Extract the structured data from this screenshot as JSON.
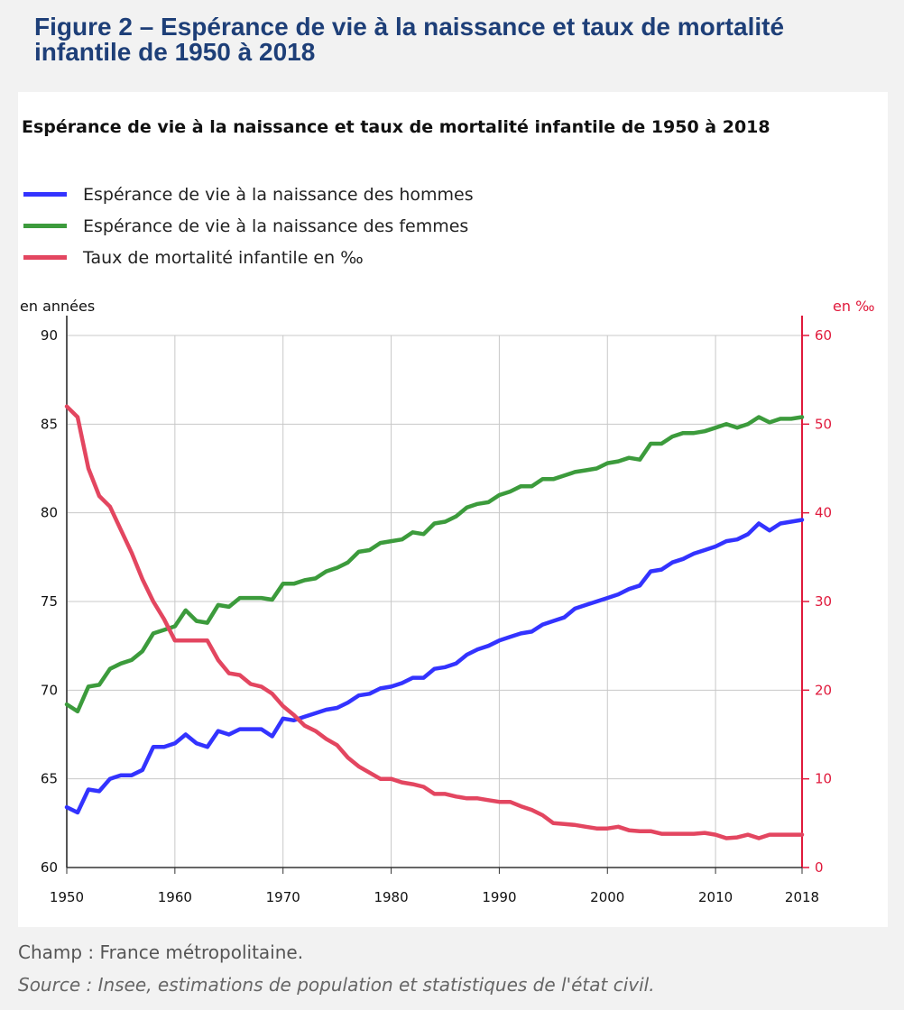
{
  "figure_title": "Figure 2 – Espérance de vie à la naissance et taux de mortalité infantile de 1950 à 2018",
  "footnotes": {
    "champ": "Champ : France métropolitaine.",
    "source": "Source : Insee, estimations de population et statistiques de l'état civil."
  },
  "colors": {
    "men": "#3333ff",
    "women": "#3c9b3c",
    "mortality": "#e34660",
    "right_axis": "#e0193b",
    "title": "#1e3f78"
  },
  "chart_data": {
    "type": "line",
    "title": "Espérance de vie à la naissance et taux de mortalité infantile de 1950 à 2018",
    "y_left_label": "en années",
    "y_right_label": "en ‰",
    "xlim": [
      1950,
      2018
    ],
    "ylim_left": [
      60,
      90
    ],
    "ylim_right": [
      0,
      60
    ],
    "x_ticks": [
      "1950",
      "1960",
      "1970",
      "1980",
      "1990",
      "2000",
      "2010",
      "2018"
    ],
    "y_left_ticks": [
      "60",
      "65",
      "70",
      "75",
      "80",
      "85",
      "90"
    ],
    "y_right_ticks": [
      "0",
      "10",
      "20",
      "30",
      "40",
      "50",
      "60"
    ],
    "grid": true,
    "legend_position": "top-left",
    "x": [
      1950,
      1951,
      1952,
      1953,
      1954,
      1955,
      1956,
      1957,
      1958,
      1959,
      1960,
      1961,
      1962,
      1963,
      1964,
      1965,
      1966,
      1967,
      1968,
      1969,
      1970,
      1971,
      1972,
      1973,
      1974,
      1975,
      1976,
      1977,
      1978,
      1979,
      1980,
      1981,
      1982,
      1983,
      1984,
      1985,
      1986,
      1987,
      1988,
      1989,
      1990,
      1991,
      1992,
      1993,
      1994,
      1995,
      1996,
      1997,
      1998,
      1999,
      2000,
      2001,
      2002,
      2003,
      2004,
      2005,
      2006,
      2007,
      2008,
      2009,
      2010,
      2011,
      2012,
      2013,
      2014,
      2015,
      2016,
      2017,
      2018
    ],
    "series": [
      {
        "name": "Espérance de vie à la naissance des hommes",
        "axis": "left",
        "color": "#3333ff",
        "values": [
          63.4,
          63.1,
          64.4,
          64.3,
          65.0,
          65.2,
          65.2,
          65.5,
          66.8,
          66.8,
          67.0,
          67.5,
          67.0,
          66.8,
          67.7,
          67.5,
          67.8,
          67.8,
          67.8,
          67.4,
          68.4,
          68.3,
          68.5,
          68.7,
          68.9,
          69.0,
          69.3,
          69.7,
          69.8,
          70.1,
          70.2,
          70.4,
          70.7,
          70.7,
          71.2,
          71.3,
          71.5,
          72.0,
          72.3,
          72.5,
          72.8,
          73.0,
          73.2,
          73.3,
          73.7,
          73.9,
          74.1,
          74.6,
          74.8,
          75.0,
          75.2,
          75.4,
          75.7,
          75.9,
          76.7,
          76.8,
          77.2,
          77.4,
          77.7,
          77.9,
          78.1,
          78.4,
          78.5,
          78.8,
          79.4,
          79.0,
          79.4,
          79.5,
          79.6
        ]
      },
      {
        "name": "Espérance de vie à la naissance des femmes",
        "axis": "left",
        "color": "#3c9b3c",
        "values": [
          69.2,
          68.8,
          70.2,
          70.3,
          71.2,
          71.5,
          71.7,
          72.2,
          73.2,
          73.4,
          73.6,
          74.5,
          73.9,
          73.8,
          74.8,
          74.7,
          75.2,
          75.2,
          75.2,
          75.1,
          76.0,
          76.0,
          76.2,
          76.3,
          76.7,
          76.9,
          77.2,
          77.8,
          77.9,
          78.3,
          78.4,
          78.5,
          78.9,
          78.8,
          79.4,
          79.5,
          79.8,
          80.3,
          80.5,
          80.6,
          81.0,
          81.2,
          81.5,
          81.5,
          81.9,
          81.9,
          82.1,
          82.3,
          82.4,
          82.5,
          82.8,
          82.9,
          83.1,
          83.0,
          83.9,
          83.9,
          84.3,
          84.5,
          84.5,
          84.6,
          84.8,
          85.0,
          84.8,
          85.0,
          85.4,
          85.1,
          85.3,
          85.3,
          85.4
        ]
      },
      {
        "name": "Taux de mortalité infantile en ‰",
        "axis": "right",
        "color": "#e34660",
        "values": [
          52.0,
          50.8,
          45.0,
          41.9,
          40.7,
          38.1,
          35.5,
          32.5,
          30.0,
          28.0,
          25.6,
          25.6,
          25.6,
          25.6,
          23.4,
          21.9,
          21.7,
          20.7,
          20.4,
          19.6,
          18.2,
          17.2,
          16.0,
          15.4,
          14.5,
          13.8,
          12.4,
          11.4,
          10.7,
          10.0,
          10.0,
          9.6,
          9.4,
          9.1,
          8.3,
          8.3,
          8.0,
          7.8,
          7.8,
          7.6,
          7.4,
          7.4,
          6.9,
          6.5,
          5.9,
          5.0,
          4.9,
          4.8,
          4.6,
          4.4,
          4.4,
          4.6,
          4.2,
          4.1,
          4.1,
          3.8,
          3.8,
          3.8,
          3.8,
          3.9,
          3.7,
          3.3,
          3.4,
          3.7,
          3.3,
          3.7,
          3.7,
          3.7,
          3.7
        ]
      }
    ]
  }
}
